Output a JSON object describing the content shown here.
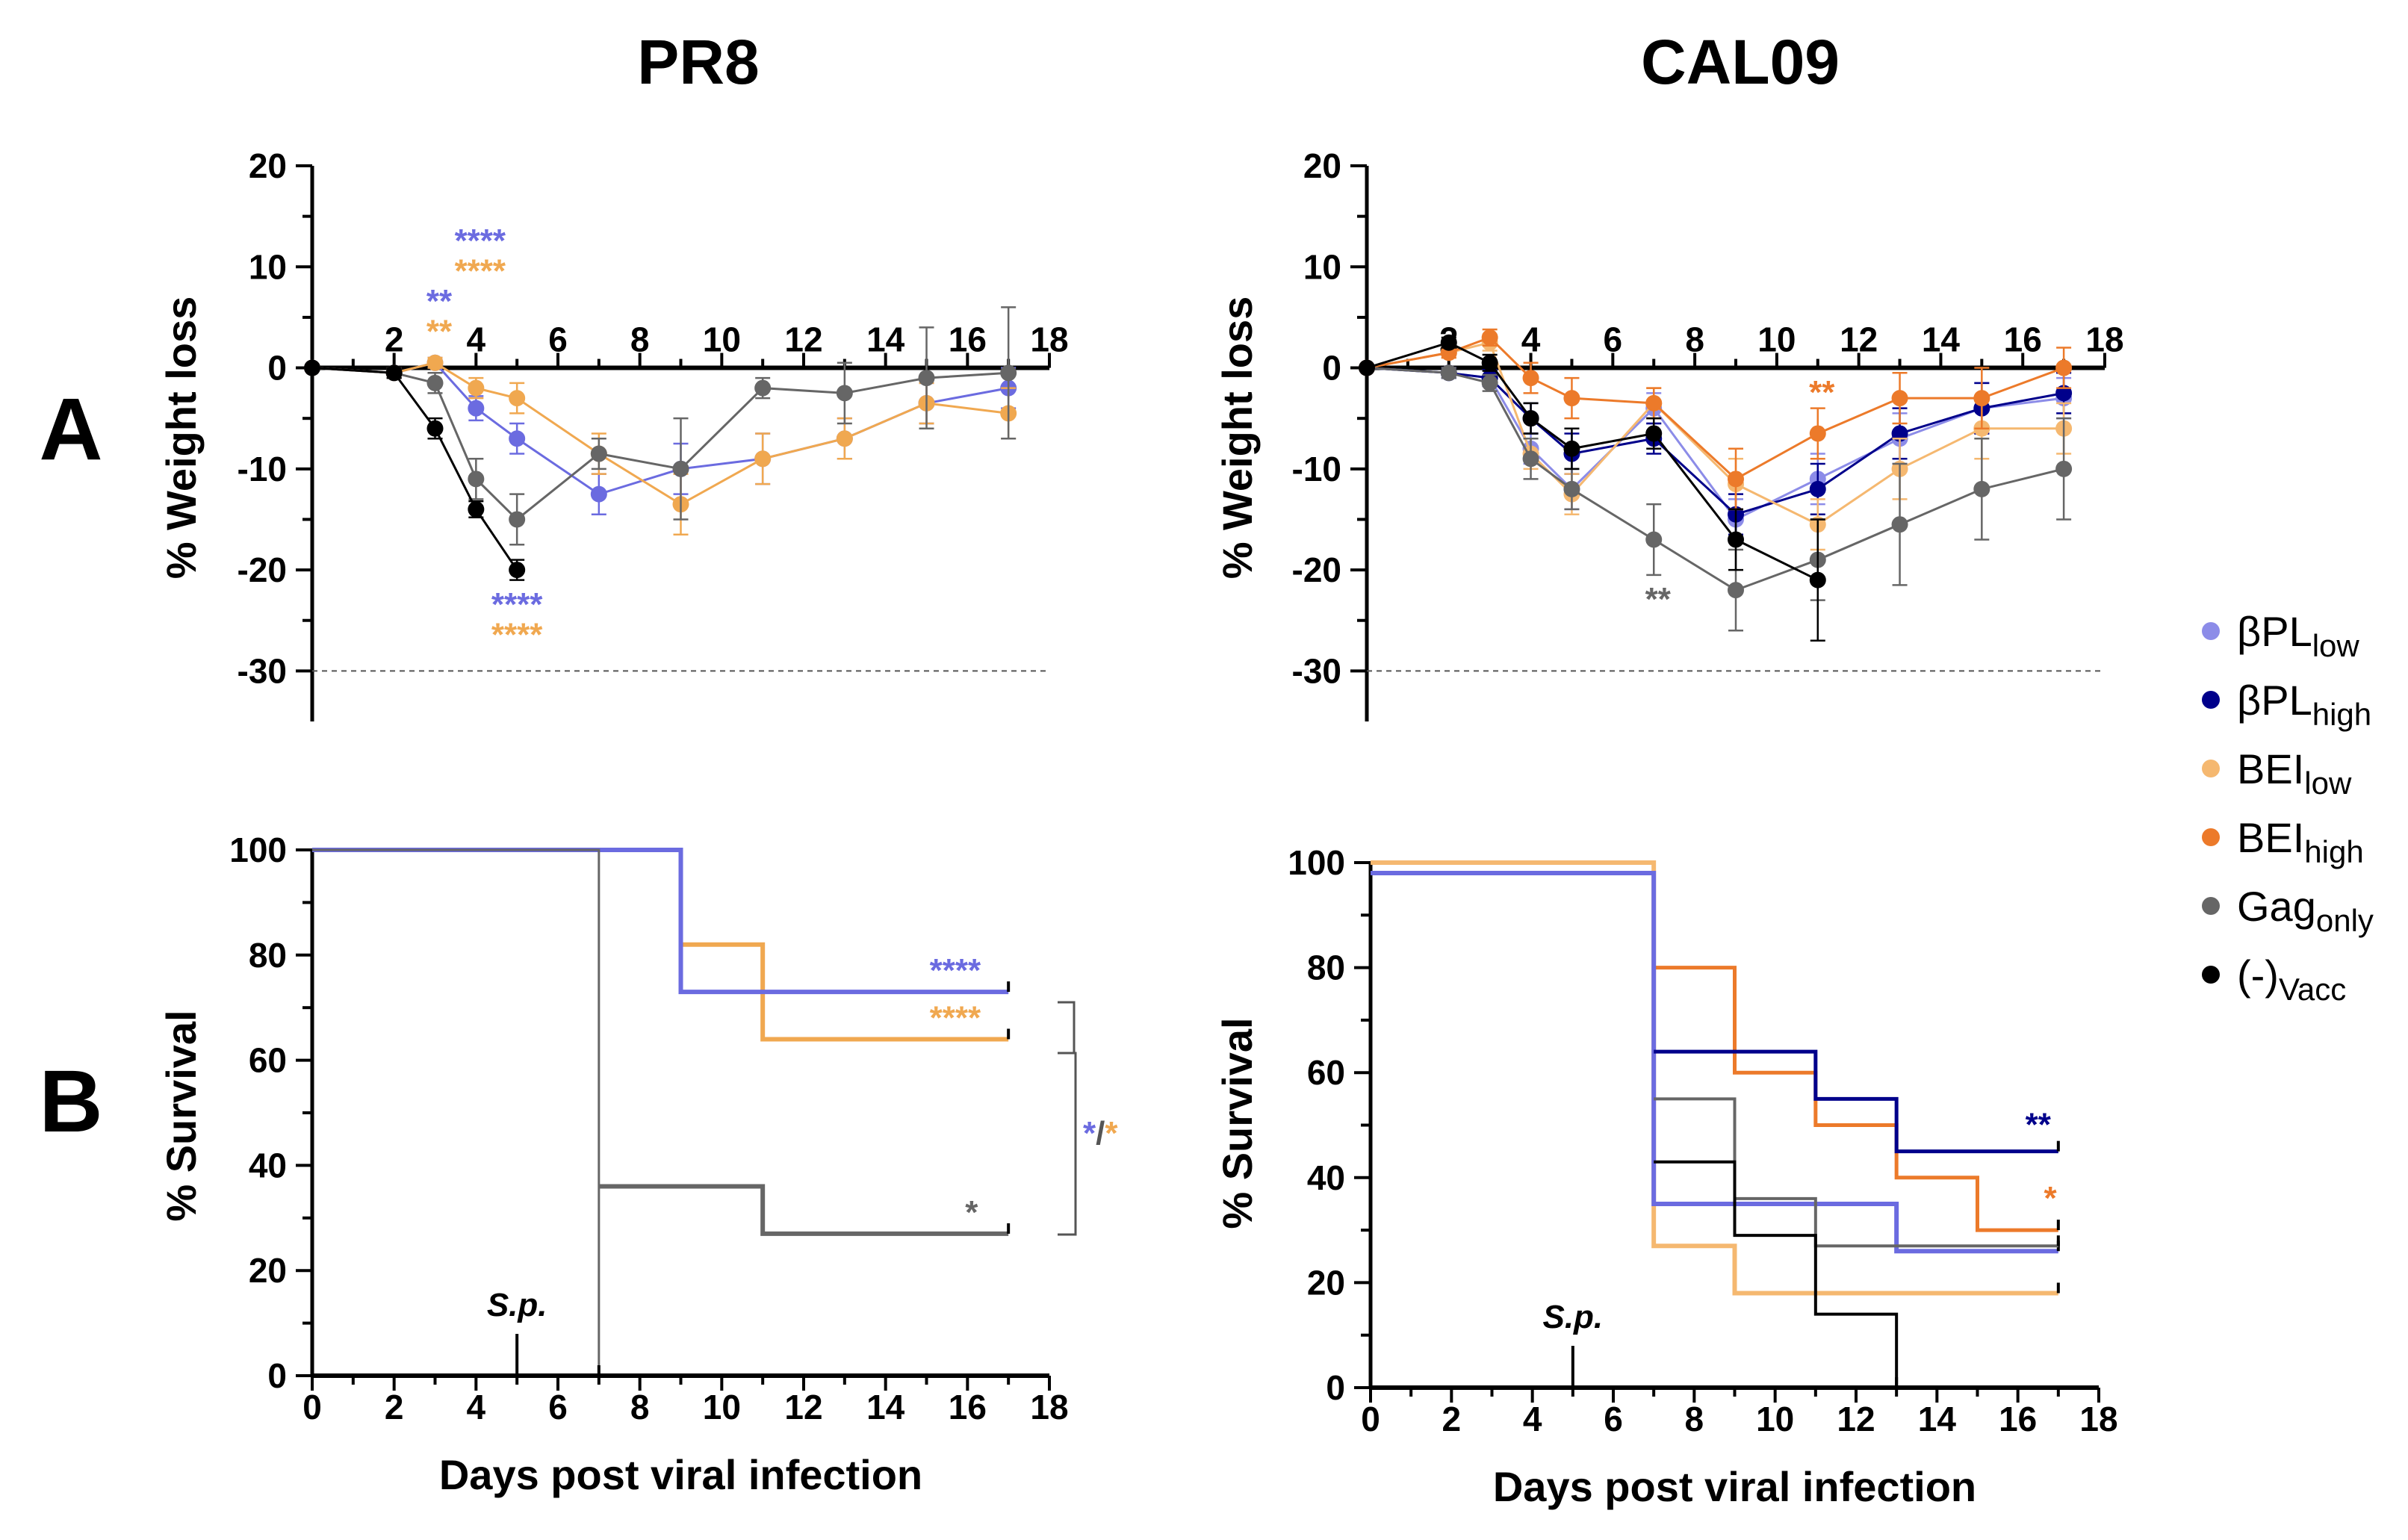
{
  "figure": {
    "panel_a": "A",
    "panel_b": "B"
  },
  "legend": [
    {
      "main": "βPL",
      "sub": "low",
      "color": "#8c8ce8"
    },
    {
      "main": "βPL",
      "sub": "high",
      "color": "#00008b"
    },
    {
      "main": "BEI",
      "sub": "low",
      "color": "#f5b870"
    },
    {
      "main": "BEI",
      "sub": "high",
      "color": "#ec7a2a"
    },
    {
      "main": "Gag",
      "sub": "only",
      "color": "#666666"
    },
    {
      "main": "(-)",
      "sub": "Vacc",
      "color": "#000000"
    }
  ],
  "chart_data": [
    {
      "id": "pr8_weight",
      "type": "line",
      "title": "PR8",
      "xlabel": "",
      "ylabel": "% Weight loss",
      "xlim": [
        0,
        18
      ],
      "ylim": [
        -35,
        20
      ],
      "xticks": [
        2,
        4,
        6,
        8,
        10,
        12,
        14,
        16,
        18
      ],
      "yticks": [
        20,
        10,
        0,
        -10,
        -20,
        -30
      ],
      "threshold": -30,
      "series": [
        {
          "name": "βPLlow",
          "color": "#6b6be0",
          "x": [
            0,
            2,
            3,
            4,
            5,
            7,
            9,
            11,
            13,
            15,
            17
          ],
          "y": [
            0,
            -0.5,
            0.5,
            -4,
            -7,
            -12.5,
            -10,
            -9,
            -7,
            -3.5,
            -2
          ],
          "err": [
            0,
            0.5,
            0.5,
            1.2,
            1.5,
            2,
            2.5,
            2.5,
            2,
            2,
            2
          ]
        },
        {
          "name": "BEIlow",
          "color": "#f0a850",
          "x": [
            0,
            2,
            3,
            4,
            5,
            7,
            9,
            11,
            13,
            15,
            17
          ],
          "y": [
            0,
            -0.5,
            0.5,
            -2,
            -3,
            -8.5,
            -13.5,
            -9,
            -7,
            -3.5,
            -4.5
          ],
          "err": [
            0,
            0.5,
            0.5,
            1,
            1.5,
            2,
            3,
            2.5,
            2,
            2,
            2.5
          ]
        },
        {
          "name": "Gagonly",
          "color": "#666666",
          "x": [
            0,
            2,
            3,
            4,
            5,
            7,
            9,
            11,
            13,
            15,
            17
          ],
          "y": [
            0,
            -0.5,
            -1.5,
            -11,
            -15,
            -8.5,
            -10,
            -2,
            -2.5,
            -1,
            -0.5
          ],
          "err": [
            0,
            0.5,
            1,
            2,
            2.5,
            1.5,
            5,
            1,
            3,
            5,
            6.5
          ]
        },
        {
          "name": "(-)Vacc",
          "color": "#000000",
          "x": [
            0,
            2,
            3,
            4,
            5
          ],
          "y": [
            0,
            -0.5,
            -6,
            -14,
            -20
          ],
          "err": [
            0,
            0.5,
            1,
            0.8,
            1
          ]
        }
      ],
      "annotations": [
        {
          "text": "****",
          "x": 4.1,
          "y": 11.5,
          "color": "#6b6be0"
        },
        {
          "text": "****",
          "x": 4.1,
          "y": 8.5,
          "color": "#f0a850"
        },
        {
          "text": "**",
          "x": 3.1,
          "y": 5.5,
          "color": "#6b6be0"
        },
        {
          "text": "**",
          "x": 3.1,
          "y": 2.5,
          "color": "#f0a850"
        },
        {
          "text": "****",
          "x": 5.0,
          "y": -24.5,
          "color": "#6b6be0"
        },
        {
          "text": "****",
          "x": 5.0,
          "y": -27.5,
          "color": "#f0a850"
        }
      ]
    },
    {
      "id": "cal09_weight",
      "type": "line",
      "title": "CAL09",
      "xlabel": "",
      "ylabel": "% Weight loss",
      "xlim": [
        0,
        18
      ],
      "ylim": [
        -35,
        20
      ],
      "xticks": [
        2,
        4,
        6,
        8,
        10,
        12,
        14,
        16,
        18
      ],
      "yticks": [
        20,
        10,
        0,
        -10,
        -20,
        -30
      ],
      "threshold": -30,
      "series": [
        {
          "name": "βPLlow",
          "color": "#8c8ce8",
          "x": [
            0,
            2,
            3,
            4,
            5,
            7,
            9,
            11,
            13,
            15,
            17
          ],
          "y": [
            0,
            -0.5,
            -1,
            -8,
            -12,
            -4,
            -15,
            -11,
            -7,
            -4,
            -3
          ],
          "err": [
            0,
            0.5,
            0.8,
            1.5,
            2,
            1.5,
            2,
            2.5,
            2.5,
            2.5,
            2
          ]
        },
        {
          "name": "βPLhigh",
          "color": "#00008b",
          "x": [
            0,
            2,
            3,
            4,
            5,
            7,
            9,
            11,
            13,
            15,
            17
          ],
          "y": [
            0,
            -0.5,
            -1,
            -5,
            -8.5,
            -7,
            -14.5,
            -12,
            -6.5,
            -4,
            -2.5
          ],
          "err": [
            0,
            0.5,
            0.8,
            1.5,
            2,
            1.5,
            2,
            2.5,
            2.5,
            2.5,
            2
          ]
        },
        {
          "name": "BEIlow",
          "color": "#f5b870",
          "x": [
            0,
            2,
            3,
            4,
            5,
            7,
            9,
            11,
            13,
            15,
            17
          ],
          "y": [
            0,
            1.5,
            2.5,
            -8.5,
            -12.5,
            -3.5,
            -11.5,
            -15.5,
            -10,
            -6,
            -6
          ],
          "err": [
            0,
            0.5,
            0.8,
            1.5,
            2,
            1.5,
            2.5,
            2.5,
            3,
            3,
            2.5
          ]
        },
        {
          "name": "BEIhigh",
          "color": "#ec7a2a",
          "x": [
            0,
            2,
            3,
            4,
            5,
            7,
            9,
            11,
            13,
            15,
            17
          ],
          "y": [
            0,
            1.5,
            3,
            -1,
            -3,
            -3.5,
            -11,
            -6.5,
            -3,
            -3,
            0
          ],
          "err": [
            0,
            0.5,
            0.8,
            1.5,
            2,
            1.5,
            3,
            2.5,
            2.5,
            3,
            2
          ]
        },
        {
          "name": "Gagonly",
          "color": "#666666",
          "x": [
            0,
            2,
            3,
            4,
            5,
            7,
            9,
            11,
            13,
            15,
            17
          ],
          "y": [
            0,
            -0.5,
            -1.5,
            -9,
            -12,
            -17,
            -22,
            -19,
            -15.5,
            -12,
            -10
          ],
          "err": [
            0,
            0.5,
            0.8,
            2,
            2,
            3.5,
            4,
            4,
            6,
            5,
            5
          ]
        },
        {
          "name": "(-)Vacc",
          "color": "#000000",
          "x": [
            0,
            2,
            3,
            4,
            5,
            7,
            9,
            11
          ],
          "y": [
            0,
            2.5,
            0.5,
            -5,
            -8,
            -6.5,
            -17,
            -21
          ],
          "err": [
            0,
            0.5,
            0.8,
            1.5,
            2,
            1.5,
            3,
            6
          ]
        }
      ],
      "annotations": [
        {
          "text": "**",
          "x": 11.1,
          "y": -3.5,
          "color": "#ec7a2a"
        },
        {
          "text": "**",
          "x": 7.1,
          "y": -24,
          "color": "#666666"
        }
      ]
    },
    {
      "id": "pr8_survival",
      "type": "line",
      "title": "",
      "xlabel": "Days post viral infection",
      "ylabel": "% Survival",
      "xlim": [
        0,
        18
      ],
      "ylim": [
        0,
        100
      ],
      "xticks": [
        0,
        2,
        4,
        6,
        8,
        10,
        12,
        14,
        16,
        18
      ],
      "yticks": [
        0,
        20,
        40,
        60,
        80,
        100
      ],
      "sp_label": "S.p.",
      "sp_x": 5,
      "series": [
        {
          "name": "BEIlow",
          "color": "#f0a850",
          "width": 6,
          "step_x": [
            0,
            9,
            11,
            17
          ],
          "step_y": [
            100,
            82,
            64,
            64
          ]
        },
        {
          "name": "βPLlow",
          "color": "#6b6be0",
          "width": 6,
          "step_x": [
            0,
            9,
            17
          ],
          "step_y": [
            100,
            73,
            73
          ]
        },
        {
          "name": "Gagonly",
          "color": "#666666",
          "width": 6,
          "step_x": [
            7,
            11,
            17
          ],
          "step_y": [
            36,
            27,
            27
          ]
        },
        {
          "name": "(-)Vacc",
          "color": "#666666",
          "width": 3,
          "step_x": [
            0,
            7,
            7
          ],
          "step_y": [
            100,
            100,
            0
          ]
        }
      ],
      "annotations": [
        {
          "text": "****",
          "x": 15.7,
          "y": 75,
          "color": "#6b6be0"
        },
        {
          "text": "****",
          "x": 15.7,
          "y": 66,
          "color": "#f0a850"
        },
        {
          "text": "*",
          "x": 16.1,
          "y": 29,
          "color": "#666666"
        }
      ],
      "bracket_label_a": "*",
      "bracket_label_sep": "/",
      "bracket_label_b": "*",
      "bracket_color_a": "#6b6be0",
      "bracket_color_b": "#f0a850"
    },
    {
      "id": "cal09_survival",
      "type": "line",
      "title": "",
      "xlabel": "Days post viral infection",
      "ylabel": "% Survival",
      "xlim": [
        0,
        18
      ],
      "ylim": [
        0,
        100
      ],
      "xticks": [
        0,
        2,
        4,
        6,
        8,
        10,
        12,
        14,
        16,
        18
      ],
      "yticks": [
        0,
        20,
        40,
        60,
        80,
        100
      ],
      "sp_label": "S.p.",
      "sp_x": 5,
      "series": [
        {
          "name": "BEIlow",
          "color": "#f5b870",
          "width": 6,
          "step_x": [
            0,
            7,
            9,
            17
          ],
          "step_y": [
            100,
            27,
            18,
            18
          ]
        },
        {
          "name": "BEIhigh",
          "color": "#ec7a2a",
          "width": 5,
          "step_x": [
            7,
            9,
            11,
            13,
            15,
            17
          ],
          "step_y": [
            80,
            60,
            50,
            40,
            30,
            30
          ]
        },
        {
          "name": "βPLlow",
          "color": "#6b6be0",
          "width": 6,
          "step_x": [
            0,
            7,
            13,
            17
          ],
          "step_y": [
            98,
            35,
            26,
            26
          ]
        },
        {
          "name": "βPLhigh",
          "color": "#00008b",
          "width": 5,
          "step_x": [
            7,
            11,
            13,
            17
          ],
          "step_y": [
            64,
            55,
            45,
            45
          ]
        },
        {
          "name": "Gagonly",
          "color": "#666666",
          "width": 4,
          "step_x": [
            7,
            9,
            11,
            17
          ],
          "step_y": [
            55,
            36,
            27,
            27
          ]
        },
        {
          "name": "(-)Vacc",
          "color": "#000000",
          "width": 4,
          "step_x": [
            7,
            9,
            11,
            13
          ],
          "step_y": [
            43,
            29,
            14,
            0
          ]
        }
      ],
      "annotations": [
        {
          "text": "**",
          "x": 16.5,
          "y": 48,
          "color": "#00008b"
        },
        {
          "text": "*",
          "x": 16.8,
          "y": 34,
          "color": "#ec7a2a"
        }
      ]
    }
  ]
}
